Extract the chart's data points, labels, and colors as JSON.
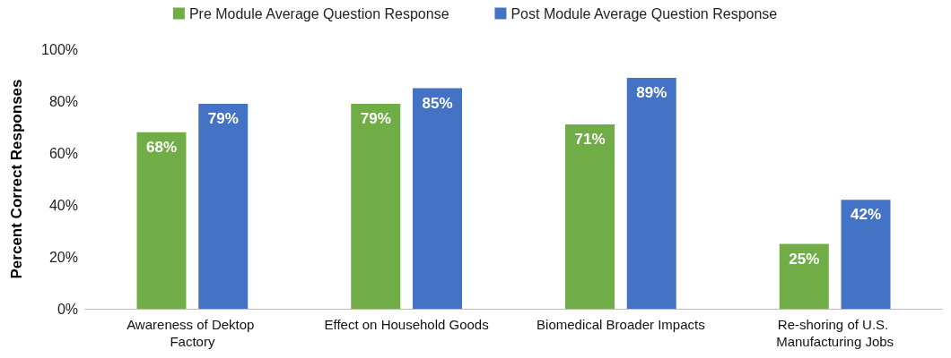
{
  "chart_data": {
    "type": "bar",
    "ylabel": "Percent Correct Responses",
    "categories": [
      "Awareness of Dektop Factory",
      "Effect on Household Goods",
      "Biomedical Broader Impacts",
      "Re-shoring of U.S. Manufacturing Jobs"
    ],
    "series": [
      {
        "name": "Pre Module Average Question Response",
        "color": "#70ad47",
        "values": [
          68,
          79,
          71,
          25
        ],
        "value_labels": [
          "68%",
          "79%",
          "71%",
          "25%"
        ]
      },
      {
        "name": "Post Module Average Question Response",
        "color": "#4472c4",
        "values": [
          79,
          85,
          89,
          42
        ],
        "value_labels": [
          "79%",
          "85%",
          "89%",
          "42%"
        ]
      }
    ],
    "ylim": [
      0,
      100
    ],
    "yticks": [
      {
        "value": 0,
        "label": "0%"
      },
      {
        "value": 20,
        "label": "20%"
      },
      {
        "value": 40,
        "label": "40%"
      },
      {
        "value": 60,
        "label": "60%"
      },
      {
        "value": 80,
        "label": "80%"
      },
      {
        "value": 100,
        "label": "100%"
      }
    ],
    "grid": false,
    "legend": "top"
  }
}
